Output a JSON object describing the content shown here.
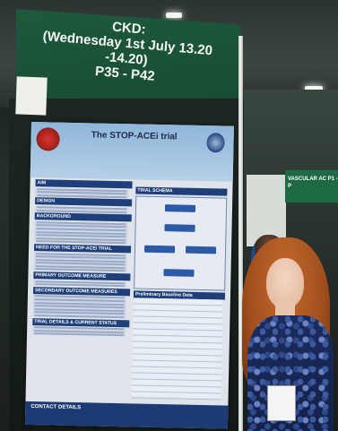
{
  "header_sign": {
    "line1": "CKD:",
    "line2": "(Wednesday 1st July 13.20 -14.20)",
    "line3": "P35 - P42"
  },
  "poster": {
    "title": "The STOP-ACEi trial",
    "sections_left": [
      "AIM",
      "DESIGN",
      "BACKGROUND",
      "NEED FOR THE STOP-ACEi TRIAL",
      "PRIMARY OUTCOME MEASURE",
      "SECONDARY OUTCOME MEASURES",
      "TRIAL DETAILS & CURRENT STATUS"
    ],
    "sections_right": [
      "TRIAL SCHEMA",
      "Preliminary Baseline Data"
    ],
    "contact_label": "CONTACT DETAILS"
  },
  "banner_right": {
    "text": "VASCULAR AC P1 - P"
  },
  "colors": {
    "header_green": "#1e5a3d",
    "poster_blue": "#1f3f7a",
    "hair": "#b05a22"
  }
}
